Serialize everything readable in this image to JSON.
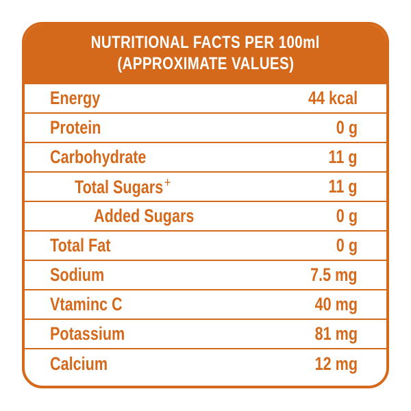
{
  "header": {
    "line1": "NUTRITIONAL FACTS PER 100ml",
    "line2": "(APPROXIMATE VALUES)"
  },
  "rows": [
    {
      "label": "Energy",
      "value": "44 kcal",
      "indent": 0,
      "mark": ""
    },
    {
      "label": "Protein",
      "value": "0 g",
      "indent": 0,
      "mark": ""
    },
    {
      "label": "Carbohydrate",
      "value": "11 g",
      "indent": 0,
      "mark": ""
    },
    {
      "label": "Total Sugars",
      "value": "11 g",
      "indent": 1,
      "mark": "+"
    },
    {
      "label": "Added Sugars",
      "value": "0 g",
      "indent": 2,
      "mark": ""
    },
    {
      "label": "Total Fat",
      "value": "0 g",
      "indent": 0,
      "mark": ""
    },
    {
      "label": "Sodium",
      "value": "7.5 mg",
      "indent": 0,
      "mark": ""
    },
    {
      "label": "Vtaminc C",
      "value": "40 mg",
      "indent": 0,
      "mark": ""
    },
    {
      "label": "Potassium",
      "value": "81 mg",
      "indent": 0,
      "mark": ""
    },
    {
      "label": "Calcium",
      "value": "12 mg",
      "indent": 0,
      "mark": ""
    }
  ],
  "colors": {
    "accent": "#d5691b",
    "background": "#ffffff"
  }
}
